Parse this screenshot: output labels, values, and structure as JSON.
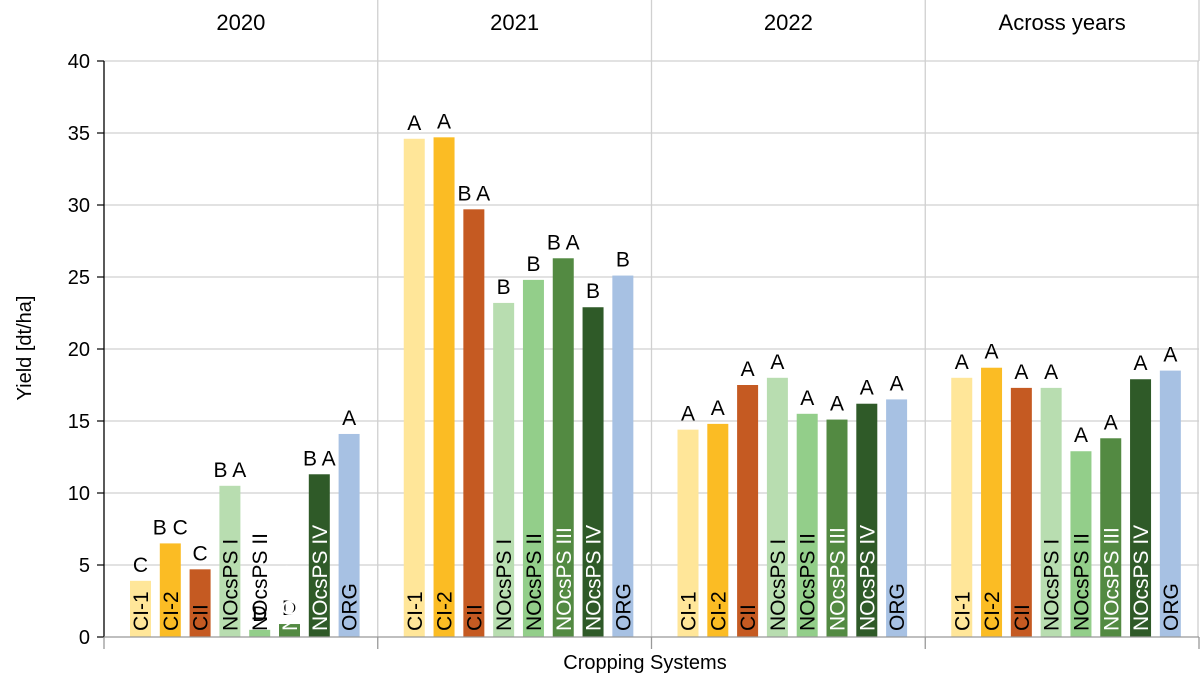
{
  "chart_data": {
    "type": "bar",
    "xlabel": "Cropping Systems",
    "ylabel": "Yield [dt/ha]",
    "ylim": [
      0,
      40
    ],
    "yticks": [
      0,
      5,
      10,
      15,
      20,
      25,
      30,
      35,
      40
    ],
    "grid": true,
    "categories": [
      "CI-1",
      "CI-2",
      "CII",
      "NOcsPS I",
      "NOcsPS II",
      "NOcsPS III",
      "NOcsPS IV",
      "ORG"
    ],
    "colors": [
      "#FFE699",
      "#FBBC24",
      "#C55A22",
      "#B8DDB0",
      "#93CE8A",
      "#538A42",
      "#2F5A28",
      "#A7C1E3"
    ],
    "label_colors": [
      "#000000",
      "#000000",
      "#000000",
      "#000000",
      "#000000",
      "#ffffff",
      "#ffffff",
      "#000000"
    ],
    "panels": [
      {
        "title": "2020",
        "values": [
          3.9,
          6.5,
          4.7,
          10.5,
          0.5,
          0.9,
          11.3,
          14.1
        ],
        "letters": [
          "C",
          "B C",
          "C",
          "B A",
          "D",
          "D",
          "B A",
          "A"
        ]
      },
      {
        "title": "2021",
        "values": [
          34.6,
          34.7,
          29.7,
          23.2,
          24.8,
          26.3,
          22.9,
          25.1
        ],
        "letters": [
          "A",
          "A",
          "B A",
          "B",
          "B",
          "B A",
          "B",
          "B"
        ]
      },
      {
        "title": "2022",
        "values": [
          14.4,
          14.8,
          17.5,
          18.0,
          15.5,
          15.1,
          16.2,
          16.5
        ],
        "letters": [
          "A",
          "A",
          "A",
          "A",
          "A",
          "A",
          "A",
          "A"
        ]
      },
      {
        "title": "Across years",
        "values": [
          18.0,
          18.7,
          17.3,
          17.3,
          12.9,
          13.8,
          17.9,
          18.5
        ],
        "letters": [
          "A",
          "A",
          "A",
          "A",
          "A",
          "A",
          "A",
          "A"
        ]
      }
    ]
  }
}
